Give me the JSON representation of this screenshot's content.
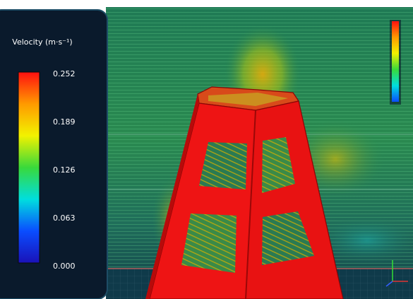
{
  "legend": {
    "title": "Velocity (m·s⁻¹)",
    "ticks": [
      "0.252",
      "0.189",
      "0.126",
      "0.063",
      "0.000"
    ],
    "gradient_colors": [
      "#ff1010",
      "#ff9a00",
      "#f2f200",
      "#39d93b",
      "#00dede",
      "#0a4dff",
      "#1a12b8"
    ]
  },
  "colors": {
    "panel_bg": "#0a1a2c",
    "panel_border": "#1d4d66",
    "flow_bg": "#0c3a3c",
    "structure_front": "#ee1414",
    "structure_side": "#c20c0c",
    "structure_edge": "#8a0606"
  },
  "mini_legend": {
    "colors": [
      "#ff1010",
      "#ff9a00",
      "#f2f200",
      "#39d93b",
      "#00dede",
      "#0a4dff"
    ]
  }
}
